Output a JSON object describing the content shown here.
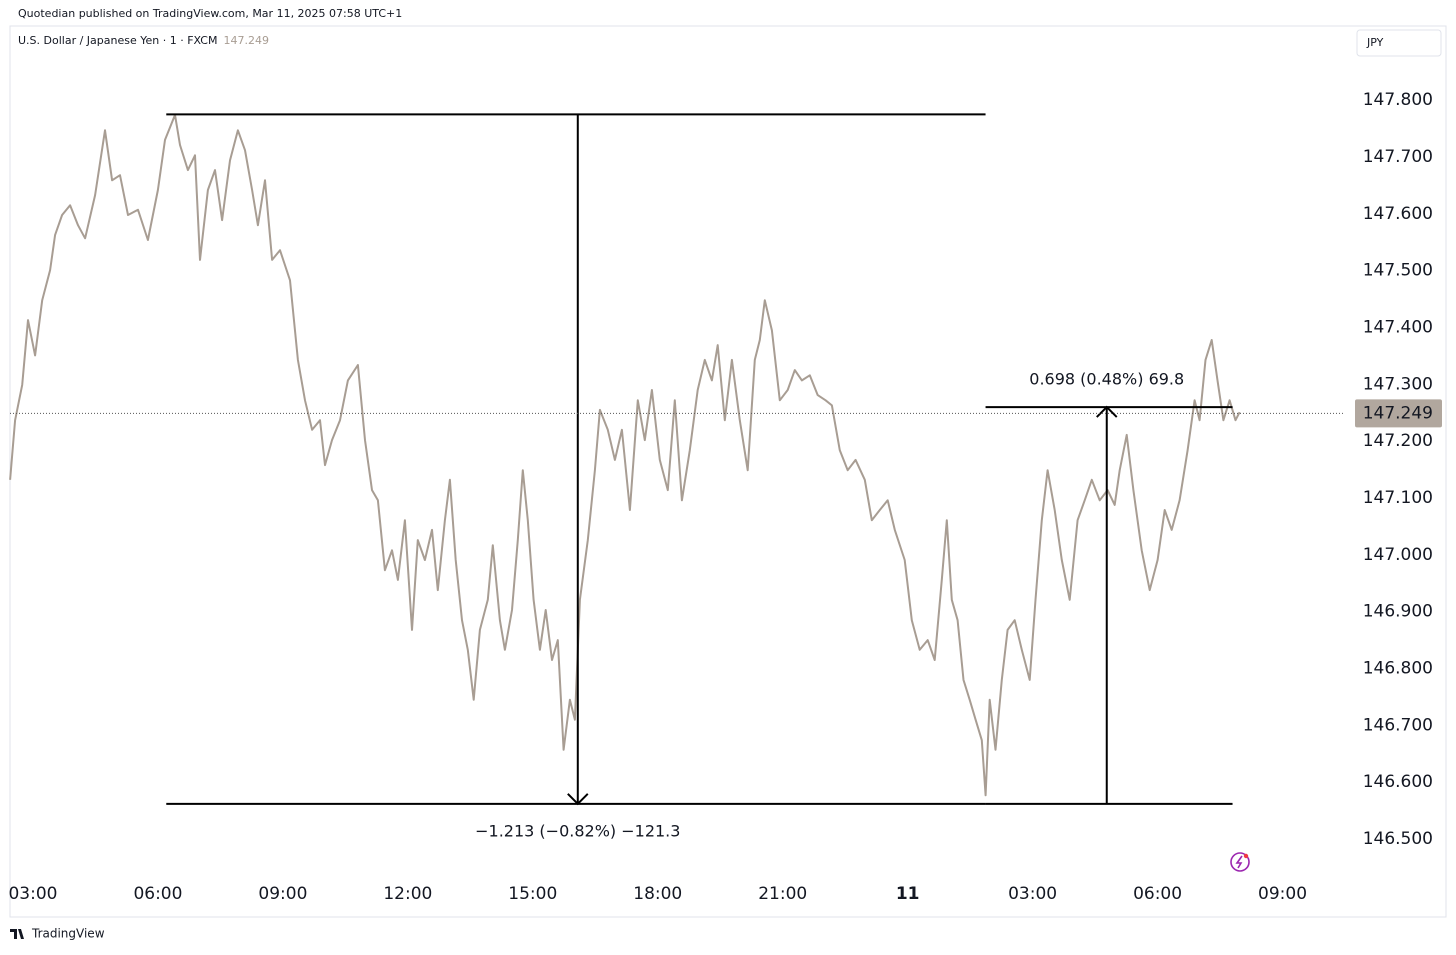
{
  "chart_data": {
    "type": "line",
    "publisher": "Quotedian published on TradingView.com, Mar 11, 2025 07:58 UTC+1",
    "title": "U.S. Dollar / Japanese Yen · 1 · FXCM",
    "currency": "JPY",
    "brand": "TradingView",
    "color": "#a89d93",
    "last_price": 147.249,
    "xlim": [
      2.448,
      34.5
    ],
    "ylim": [
      146.428,
      147.941
    ],
    "xticks": [
      {
        "value": 3,
        "label": "03:00"
      },
      {
        "value": 6,
        "label": "06:00"
      },
      {
        "value": 9,
        "label": "09:00"
      },
      {
        "value": 12,
        "label": "12:00"
      },
      {
        "value": 15,
        "label": "15:00"
      },
      {
        "value": 18,
        "label": "18:00"
      },
      {
        "value": 21,
        "label": "21:00"
      },
      {
        "value": 24,
        "label": "11"
      },
      {
        "value": 27,
        "label": "03:00"
      },
      {
        "value": 30,
        "label": "06:00"
      },
      {
        "value": 33,
        "label": "09:00"
      }
    ],
    "yticks": [
      {
        "value": 146.5,
        "label": "146.500"
      },
      {
        "value": 146.6,
        "label": "146.600"
      },
      {
        "value": 146.7,
        "label": "146.700"
      },
      {
        "value": 146.8,
        "label": "146.800"
      },
      {
        "value": 146.9,
        "label": "146.900"
      },
      {
        "value": 147,
        "label": "147.000"
      },
      {
        "value": 147.1,
        "label": "147.100"
      },
      {
        "value": 147.2,
        "label": "147.200"
      },
      {
        "value": 147.3,
        "label": "147.300"
      },
      {
        "value": 147.4,
        "label": "147.400"
      },
      {
        "value": 147.5,
        "label": "147.500"
      },
      {
        "value": 147.6,
        "label": "147.600"
      },
      {
        "value": 147.7,
        "label": "147.700"
      },
      {
        "value": 147.8,
        "label": "147.800"
      }
    ],
    "x": [
      2.45,
      2.57,
      2.74,
      2.88,
      3.05,
      3.22,
      3.41,
      3.53,
      3.7,
      3.89,
      4.08,
      4.25,
      4.49,
      4.73,
      4.9,
      5.09,
      5.28,
      5.52,
      5.76,
      6.0,
      6.17,
      6.41,
      6.53,
      6.72,
      6.89,
      7.01,
      7.2,
      7.37,
      7.54,
      7.73,
      7.92,
      8.09,
      8.26,
      8.4,
      8.57,
      8.74,
      8.93,
      9.17,
      9.36,
      9.53,
      9.7,
      9.89,
      10.01,
      10.18,
      10.37,
      10.56,
      10.8,
      10.97,
      11.14,
      11.28,
      11.45,
      11.62,
      11.76,
      11.93,
      12.1,
      12.24,
      12.41,
      12.58,
      12.72,
      12.89,
      13.01,
      13.15,
      13.3,
      13.44,
      13.58,
      13.73,
      13.92,
      14.04,
      14.21,
      14.33,
      14.5,
      14.64,
      14.76,
      14.88,
      15.02,
      15.17,
      15.31,
      15.46,
      15.6,
      15.74,
      15.89,
      16.01,
      16.13,
      16.32,
      16.49,
      16.61,
      16.8,
      16.97,
      17.14,
      17.33,
      17.52,
      17.69,
      17.86,
      18.05,
      18.24,
      18.41,
      18.58,
      18.77,
      18.96,
      19.13,
      19.3,
      19.44,
      19.61,
      19.78,
      19.97,
      20.16,
      20.33,
      20.45,
      20.57,
      20.74,
      20.93,
      21.12,
      21.29,
      21.46,
      21.65,
      21.84,
      22.03,
      22.18,
      22.37,
      22.56,
      22.75,
      22.97,
      23.14,
      23.33,
      23.52,
      23.69,
      23.93,
      24.1,
      24.29,
      24.48,
      24.65,
      24.82,
      24.94,
      25.06,
      25.2,
      25.34,
      25.49,
      25.63,
      25.78,
      25.87,
      25.97,
      26.11,
      26.26,
      26.4,
      26.57,
      26.74,
      26.93,
      27.07,
      27.22,
      27.36,
      27.53,
      27.7,
      27.89,
      28.08,
      28.25,
      28.42,
      28.61,
      28.8,
      28.97,
      29.09,
      29.26,
      29.42,
      29.62,
      29.81,
      30.0,
      30.17,
      30.34,
      30.53,
      30.72,
      30.89,
      31.01,
      31.15,
      31.3,
      31.44,
      31.58,
      31.73,
      31.87,
      31.97
    ],
    "values": [
      147.132,
      147.237,
      147.299,
      147.413,
      147.351,
      147.448,
      147.501,
      147.563,
      147.598,
      147.615,
      147.58,
      147.557,
      147.633,
      147.747,
      147.659,
      147.668,
      147.598,
      147.607,
      147.554,
      147.642,
      147.73,
      147.774,
      147.721,
      147.677,
      147.703,
      147.519,
      147.642,
      147.677,
      147.589,
      147.694,
      147.747,
      147.712,
      147.642,
      147.58,
      147.659,
      147.519,
      147.536,
      147.483,
      147.343,
      147.272,
      147.22,
      147.237,
      147.158,
      147.202,
      147.237,
      147.307,
      147.334,
      147.202,
      147.114,
      147.096,
      146.973,
      147.008,
      146.956,
      147.061,
      146.868,
      147.026,
      146.991,
      147.044,
      146.938,
      147.061,
      147.132,
      146.991,
      146.885,
      146.833,
      146.745,
      146.868,
      146.921,
      147.017,
      146.885,
      146.833,
      146.903,
      147.026,
      147.149,
      147.061,
      146.921,
      146.833,
      146.903,
      146.815,
      146.85,
      146.657,
      146.745,
      146.71,
      146.921,
      147.026,
      147.149,
      147.255,
      147.22,
      147.167,
      147.22,
      147.079,
      147.272,
      147.202,
      147.29,
      147.167,
      147.114,
      147.272,
      147.096,
      147.184,
      147.29,
      147.343,
      147.307,
      147.369,
      147.237,
      147.343,
      147.237,
      147.149,
      147.343,
      147.378,
      147.448,
      147.395,
      147.272,
      147.29,
      147.325,
      147.307,
      147.316,
      147.281,
      147.272,
      147.263,
      147.184,
      147.149,
      147.167,
      147.132,
      147.061,
      147.079,
      147.096,
      147.044,
      146.991,
      146.885,
      146.833,
      146.85,
      146.815,
      146.956,
      147.061,
      146.921,
      146.885,
      146.78,
      146.745,
      146.71,
      146.674,
      146.577,
      146.745,
      146.657,
      146.78,
      146.868,
      146.885,
      146.833,
      146.78,
      146.921,
      147.061,
      147.149,
      147.079,
      146.991,
      146.921,
      147.061,
      147.096,
      147.132,
      147.096,
      147.114,
      147.088,
      147.149,
      147.211,
      147.114,
      147.008,
      146.938,
      146.991,
      147.079,
      147.044,
      147.096,
      147.184,
      147.272,
      147.237,
      147.343,
      147.378,
      147.307,
      147.237,
      147.272,
      147.237,
      147.251
    ],
    "measures": [
      {
        "label": "−1.213 (−0.82%) −121.3",
        "from": 147.775,
        "to": 146.562,
        "arrow_x": 16.08,
        "x0": 6.2,
        "x1": 25.87
      },
      {
        "label": "0.698 (0.48%) 69.8",
        "from": 146.562,
        "to": 147.26,
        "arrow_x": 28.78,
        "x0": 25.87,
        "x1": 31.8
      }
    ]
  }
}
